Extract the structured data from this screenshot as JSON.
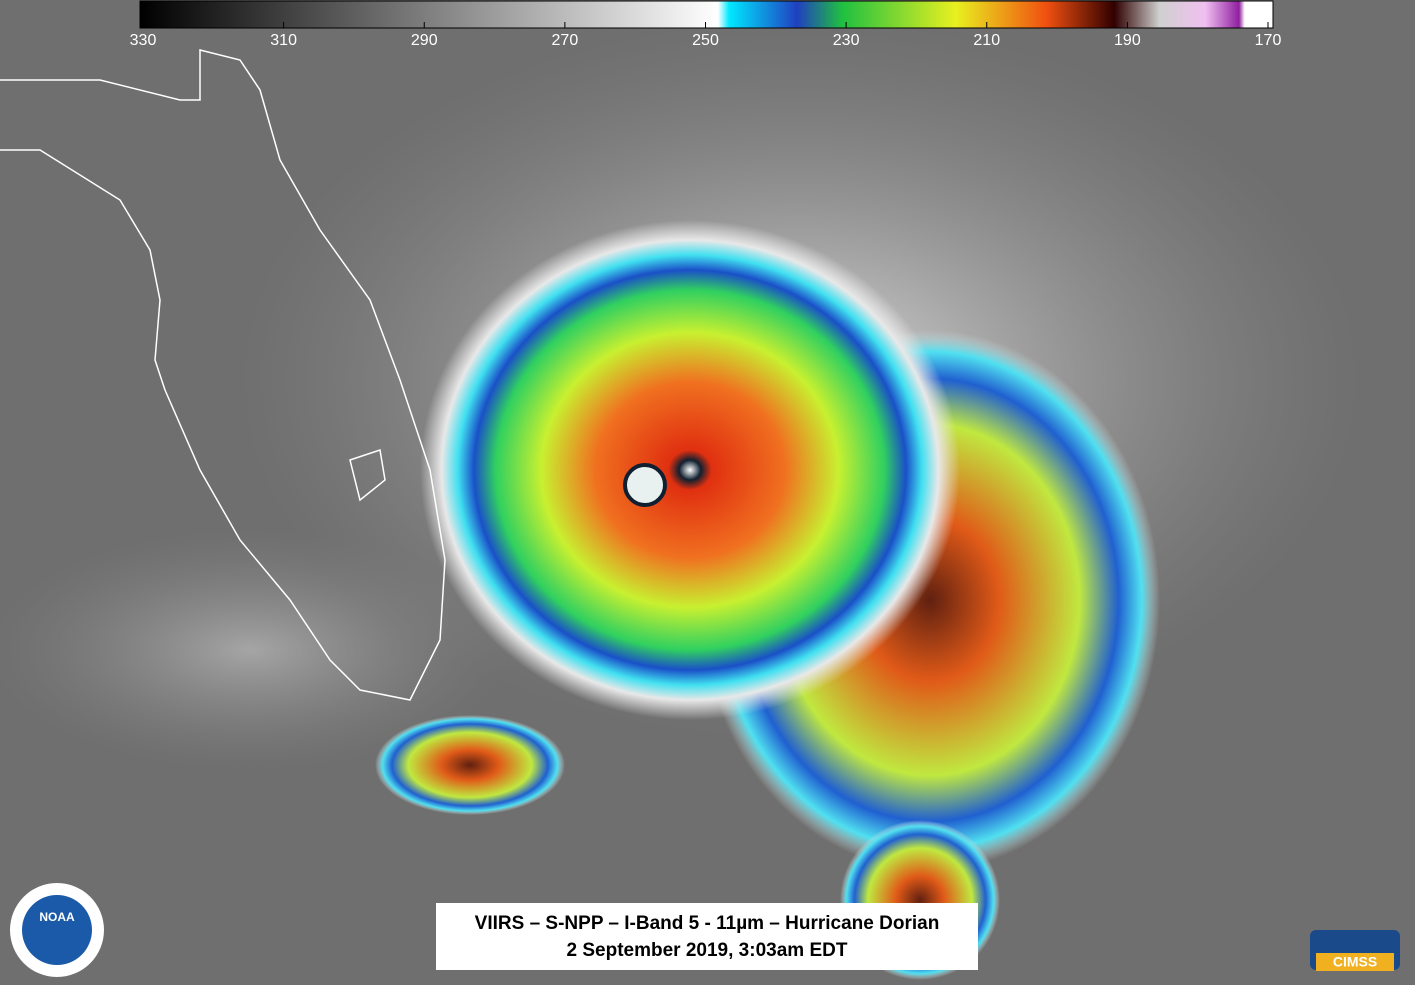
{
  "colorbar": {
    "range": [
      330,
      170
    ],
    "ticks": [
      330,
      310,
      290,
      270,
      250,
      230,
      210,
      190,
      170
    ]
  },
  "caption": {
    "line1": "VIIRS – S-NPP – I-Band 5 - 11µm – Hurricane Dorian",
    "line2": "2 September 2019, 3:03am EDT"
  },
  "logos": {
    "noaa": "NOAA",
    "cimss": "CIMSS"
  }
}
